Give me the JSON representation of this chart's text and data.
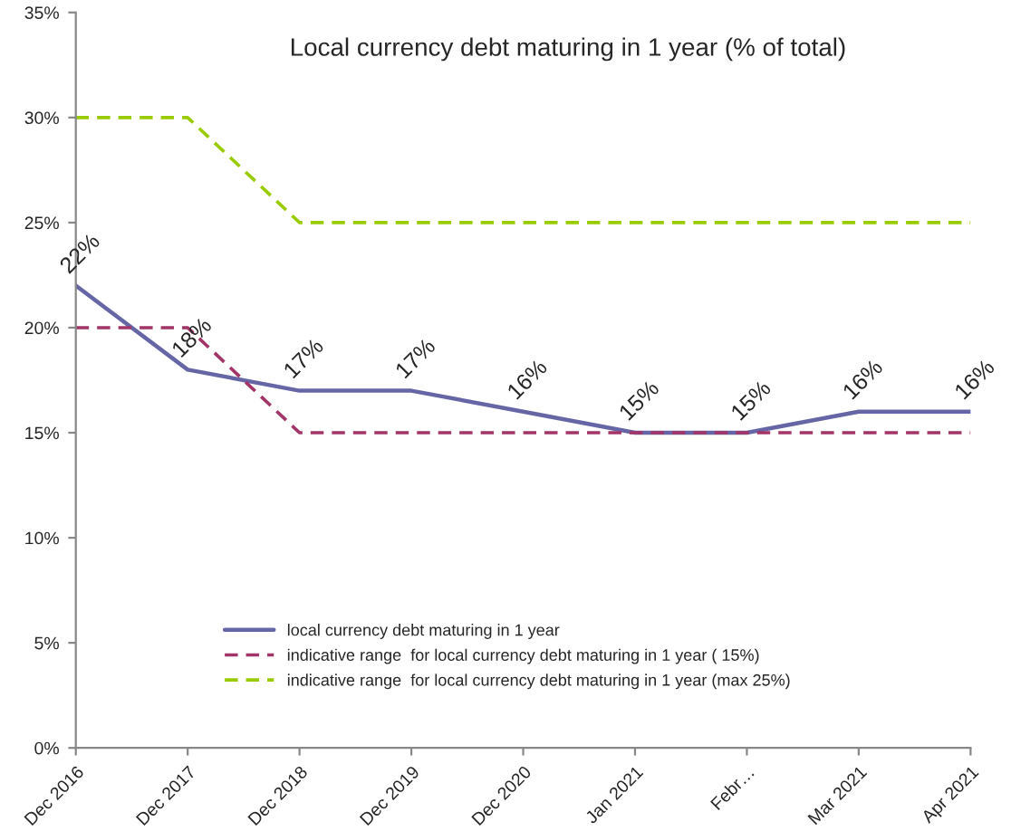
{
  "chart_data": {
    "type": "line",
    "title": "Local currency debt maturing in 1 year (% of total)",
    "categories": [
      "Dec 2016",
      "Dec 2017",
      "Dec 2018",
      "Dec 2019",
      "Dec 2020",
      "Jan 2021",
      "Febr…",
      "Mar 2021",
      "Apr 2021"
    ],
    "series": [
      {
        "name": "local currency debt maturing in 1 year",
        "color": "#6666a6",
        "line_style": "solid",
        "values": [
          22,
          18,
          17,
          17,
          16,
          15,
          15,
          16,
          16
        ],
        "value_labels": [
          "22%",
          "18%",
          "17%",
          "17%",
          "16%",
          "15%",
          "15%",
          "16%",
          "16%"
        ]
      },
      {
        "name": "indicative range  for local currency debt maturing in 1 year ( 15%)",
        "color": "#a33468",
        "line_style": "dashed",
        "values": [
          20,
          20,
          15,
          15,
          15,
          15,
          15,
          15,
          15
        ]
      },
      {
        "name": "indicative range  for local currency debt maturing in 1 year (max 25%)",
        "color": "#99cc00",
        "line_style": "dashed",
        "values": [
          30,
          30,
          25,
          25,
          25,
          25,
          25,
          25,
          25
        ]
      }
    ],
    "ylim": [
      0,
      35
    ],
    "yticks": [
      {
        "value": 0,
        "label": "0%"
      },
      {
        "value": 5,
        "label": "5%"
      },
      {
        "value": 10,
        "label": "10%"
      },
      {
        "value": 15,
        "label": "15%"
      },
      {
        "value": 20,
        "label": "20%"
      },
      {
        "value": 25,
        "label": "25%"
      },
      {
        "value": 30,
        "label": "30%"
      },
      {
        "value": 35,
        "label": "35%"
      }
    ],
    "grid": false,
    "legend": "bottom",
    "marker": "none"
  }
}
